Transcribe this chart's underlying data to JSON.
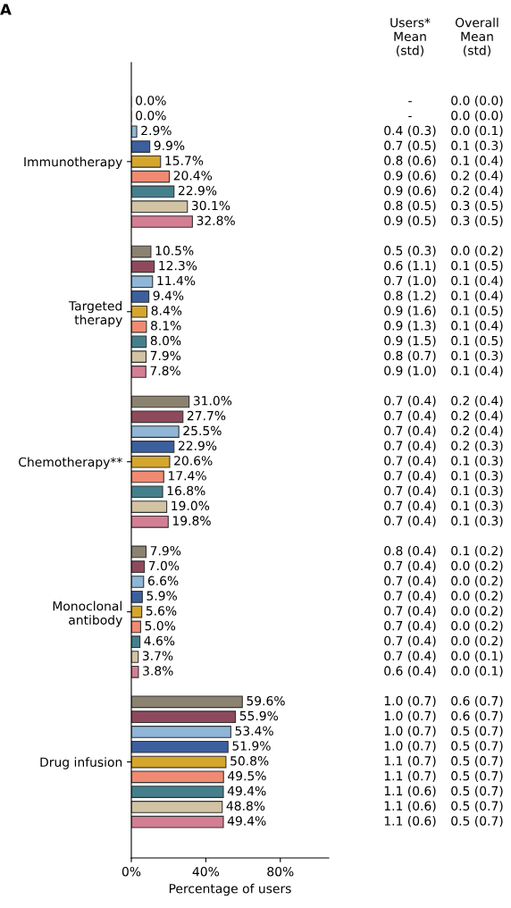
{
  "chart_data": {
    "type": "bar",
    "orientation": "horizontal",
    "title": "A",
    "xlabel": "Percentage of users",
    "categories": [
      "Immunotherapy",
      "Targeted\ntherapy",
      "Chemotherapy**",
      "Monoclonal\nantibody",
      "Drug infusion"
    ],
    "xlim": [
      0,
      106
    ],
    "xticks": [
      {
        "value": 0,
        "label": "0%"
      },
      {
        "value": 40,
        "label": "40%"
      },
      {
        "value": 80,
        "label": "80%"
      }
    ],
    "grid": false,
    "legend": false,
    "series": [
      {
        "color": "#8c8270",
        "values": [
          0.0,
          10.5,
          31.0,
          7.9,
          59.6
        ],
        "value_labels": [
          "0.0%",
          "10.5%",
          "31.0%",
          "7.9%",
          "59.6%"
        ]
      },
      {
        "color": "#8e4a5c",
        "values": [
          0.0,
          12.3,
          27.7,
          7.0,
          55.9
        ],
        "value_labels": [
          "0.0%",
          "12.3%",
          "27.7%",
          "7.0%",
          "55.9%"
        ]
      },
      {
        "color": "#8fb6d6",
        "values": [
          2.9,
          11.4,
          25.5,
          6.6,
          53.4
        ],
        "value_labels": [
          "2.9%",
          "11.4%",
          "25.5%",
          "6.6%",
          "53.4%"
        ]
      },
      {
        "color": "#3c5f9e",
        "values": [
          9.9,
          9.4,
          22.9,
          5.9,
          51.9
        ],
        "value_labels": [
          "9.9%",
          "9.4%",
          "22.9%",
          "5.9%",
          "51.9%"
        ]
      },
      {
        "color": "#d6a62c",
        "values": [
          15.7,
          8.4,
          20.6,
          5.6,
          50.8
        ],
        "value_labels": [
          "15.7%",
          "8.4%",
          "20.6%",
          "5.6%",
          "50.8%"
        ]
      },
      {
        "color": "#f08a72",
        "values": [
          20.4,
          8.1,
          17.4,
          5.0,
          49.5
        ],
        "value_labels": [
          "20.4%",
          "8.1%",
          "17.4%",
          "5.0%",
          "49.5%"
        ]
      },
      {
        "color": "#44808c",
        "values": [
          22.9,
          8.0,
          16.8,
          4.6,
          49.4
        ],
        "value_labels": [
          "22.9%",
          "8.0%",
          "16.8%",
          "4.6%",
          "49.4%"
        ]
      },
      {
        "color": "#d2c3a4",
        "values": [
          30.1,
          7.9,
          19.0,
          3.7,
          48.8
        ],
        "value_labels": [
          "30.1%",
          "7.9%",
          "19.0%",
          "3.7%",
          "48.8%"
        ]
      },
      {
        "color": "#d47e94",
        "values": [
          32.8,
          7.8,
          19.8,
          3.8,
          49.4
        ],
        "value_labels": [
          "32.8%",
          "7.8%",
          "19.8%",
          "3.8%",
          "49.4%"
        ]
      }
    ],
    "annotations": [
      "Users*\nMean\n(std)",
      "Overall\nMean\n(std)",
      "-",
      "0.0 (0.0)",
      "-",
      "0.0 (0.0)",
      "0.4 (0.3)",
      "0.0 (0.1)",
      "0.7 (0.5)",
      "0.1 (0.3)",
      "0.8 (0.6)",
      "0.1 (0.4)",
      "0.9 (0.6)",
      "0.2 (0.4)",
      "0.9 (0.6)",
      "0.2 (0.4)",
      "0.8 (0.5)",
      "0.3 (0.5)",
      "0.9 (0.5)",
      "0.3 (0.5)",
      "0.5 (0.3)",
      "0.0 (0.2)",
      "0.6 (1.1)",
      "0.1 (0.5)",
      "0.7 (1.0)",
      "0.1 (0.4)",
      "0.8 (1.2)",
      "0.1 (0.4)",
      "0.9 (1.6)",
      "0.1 (0.5)",
      "0.9 (1.3)",
      "0.1 (0.4)",
      "0.9 (1.5)",
      "0.1 (0.5)",
      "0.8 (0.7)",
      "0.1 (0.3)",
      "0.9 (1.0)",
      "0.1 (0.4)",
      "0.7 (0.4)",
      "0.2 (0.4)",
      "0.7 (0.4)",
      "0.2 (0.4)",
      "0.7 (0.4)",
      "0.2 (0.4)",
      "0.7 (0.4)",
      "0.2 (0.3)",
      "0.7 (0.4)",
      "0.1 (0.3)",
      "0.7 (0.4)",
      "0.1 (0.3)",
      "0.7 (0.4)",
      "0.1 (0.3)",
      "0.7 (0.4)",
      "0.1 (0.3)",
      "0.7 (0.4)",
      "0.1 (0.3)",
      "0.8 (0.4)",
      "0.1 (0.2)",
      "0.7 (0.4)",
      "0.0 (0.2)",
      "0.7 (0.4)",
      "0.0 (0.2)",
      "0.7 (0.4)",
      "0.0 (0.2)",
      "0.7 (0.4)",
      "0.0 (0.2)",
      "0.7 (0.4)",
      "0.0 (0.2)",
      "0.7 (0.4)",
      "0.0 (0.2)",
      "0.7 (0.4)",
      "0.0 (0.1)",
      "0.6 (0.4)",
      "0.0 (0.1)",
      "1.0 (0.7)",
      "0.6 (0.7)",
      "1.0 (0.7)",
      "0.6 (0.7)",
      "1.0 (0.7)",
      "0.5 (0.7)",
      "1.0 (0.7)",
      "0.5 (0.7)",
      "1.1 (0.7)",
      "0.5 (0.7)",
      "1.1 (0.7)",
      "0.5 (0.7)",
      "1.1 (0.6)",
      "0.5 (0.7)",
      "1.1 (0.6)",
      "0.5 (0.7)",
      "1.1 (0.6)",
      "0.5 (0.7)"
    ]
  }
}
